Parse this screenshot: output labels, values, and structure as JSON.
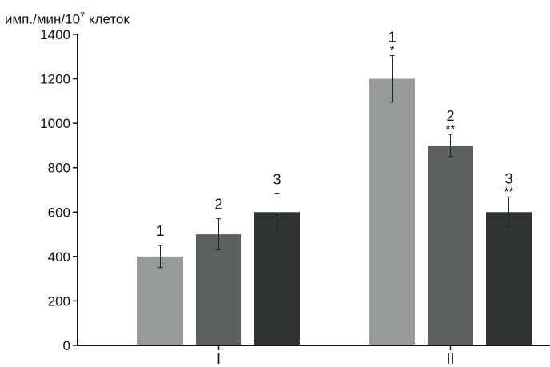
{
  "chart_data": {
    "type": "bar",
    "ylabel": {
      "pre": "имп./мин/10",
      "sup": "7",
      "post": " клеток"
    },
    "ylim": [
      0,
      1400
    ],
    "yticks": [
      0,
      200,
      400,
      600,
      800,
      1000,
      1200,
      1400
    ],
    "grid": false,
    "categories": [
      "I",
      "II"
    ],
    "series": [
      {
        "label": "1",
        "color": "#979a9a",
        "values": [
          400,
          1200
        ],
        "errors": [
          50,
          105
        ],
        "marks": [
          "",
          "*"
        ]
      },
      {
        "label": "2",
        "color": "#5d6060",
        "values": [
          500,
          900
        ],
        "errors": [
          70,
          50
        ],
        "marks": [
          "",
          "**"
        ]
      },
      {
        "label": "3",
        "color": "#303334",
        "values": [
          600,
          600
        ],
        "errors": [
          82,
          68
        ],
        "marks": [
          "",
          "**"
        ]
      }
    ]
  }
}
